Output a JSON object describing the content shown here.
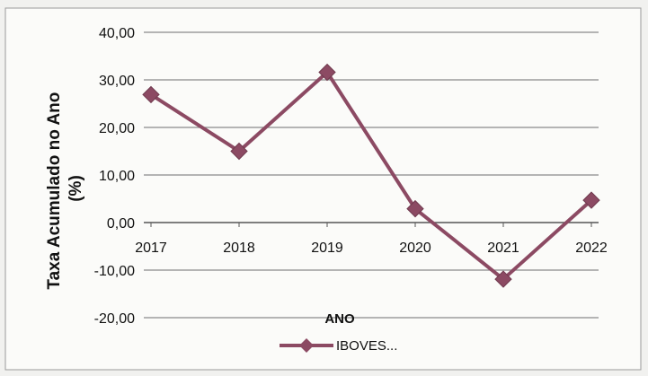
{
  "chart_data": {
    "type": "line",
    "title": "",
    "xlabel": "ANO",
    "ylabel": "Taxa Acumulado no Ano (%)",
    "ylabel_lines": [
      "Taxa Acumulado no Ano",
      "(%)"
    ],
    "categories": [
      "2017",
      "2018",
      "2019",
      "2020",
      "2021",
      "2022"
    ],
    "yticks": [
      "40,00",
      "30,00",
      "20,00",
      "10,00",
      "0,00",
      "-10,00",
      "-20,00"
    ],
    "ytick_values": [
      40,
      30,
      20,
      10,
      0,
      -10,
      -20
    ],
    "ylim": [
      -20,
      40
    ],
    "grid": true,
    "legend": "bottom",
    "series": [
      {
        "name": "IBOVES...",
        "values": [
          26.9,
          15.0,
          31.6,
          2.9,
          -11.9,
          4.7
        ],
        "color": "#8c4a63"
      }
    ]
  }
}
